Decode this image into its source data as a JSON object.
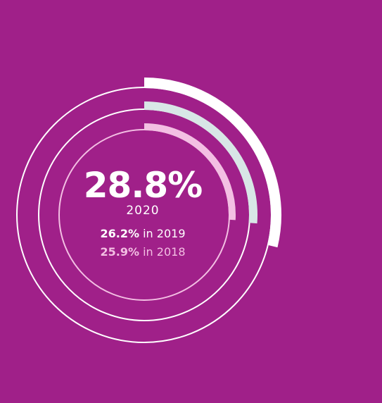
{
  "colors": {
    "background": "#a02089",
    "ring_2020": "#ffffff",
    "ring_2019": "#d8e6e6",
    "ring_2018": "#f3bfe3",
    "track_outer": "#ffffff",
    "track_middle": "#ffffff",
    "track_inner": "#f3bfe3"
  },
  "chart_data": {
    "type": "radial-bar",
    "series": [
      {
        "year": "2020",
        "value": 28.8,
        "value_label": "28.8%"
      },
      {
        "year": "2019",
        "value": 26.2,
        "value_label": "26.2%"
      },
      {
        "year": "2018",
        "value": 25.9,
        "value_label": "25.9%"
      }
    ],
    "max": 100,
    "unit": "%"
  },
  "labels": {
    "main_value": "28.8%",
    "main_year": "2020",
    "comp_2019_value": "26.2%",
    "comp_2019_text": " in 2019",
    "comp_2018_value": "25.9%",
    "comp_2018_text": " in 2018"
  }
}
